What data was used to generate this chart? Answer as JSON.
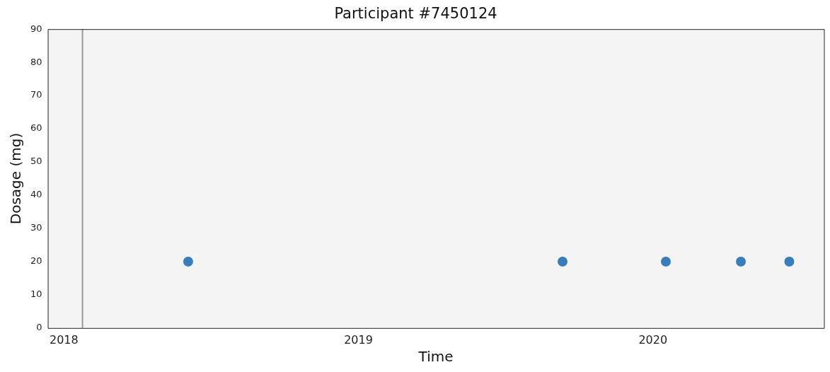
{
  "chart_data": {
    "type": "scatter",
    "title": "Participant #7450124",
    "xlabel": "Time",
    "ylabel": "Dosage (mg)",
    "x": [
      "2018-06-04",
      "2019-09-11",
      "2020-01-17",
      "2020-04-19",
      "2020-06-18"
    ],
    "series": [
      {
        "color": "#3a7dbb",
        "values": [
          20,
          20,
          20,
          20,
          20
        ]
      }
    ],
    "xlim": [
      "2017-12-12",
      "2020-07-31"
    ],
    "xticks": [
      {
        "value": "2018",
        "label": "2018"
      },
      {
        "value": "2019",
        "label": "2019"
      },
      {
        "value": "2020",
        "label": "2020"
      }
    ],
    "ylim": [
      0,
      90
    ],
    "yticks": [
      0,
      10,
      20,
      30,
      40,
      50,
      60,
      70,
      80,
      90
    ],
    "ref_lines": [
      {
        "axis": "x",
        "value": "2018-01-24",
        "color": "#999999"
      }
    ],
    "marker": "circle",
    "grid": false,
    "legend": false
  }
}
